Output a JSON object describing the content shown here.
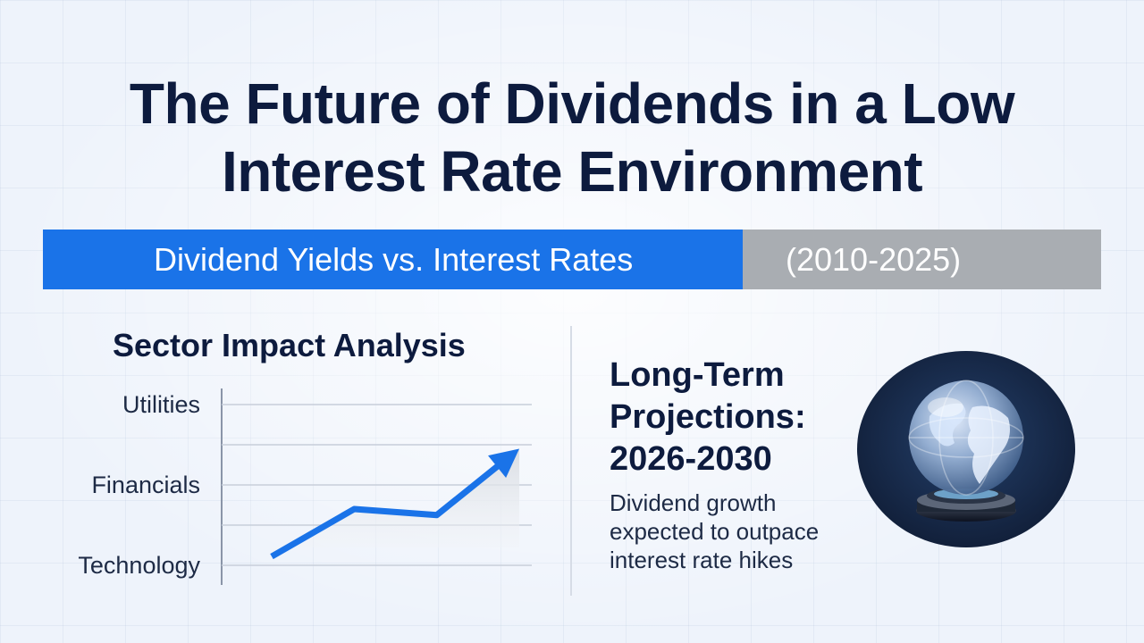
{
  "title": "The Future of Dividends in a Low Interest Rate Environment",
  "banner": {
    "label": "Dividend Yields vs. Interest Rates",
    "period": "(2010-2025)"
  },
  "sector": {
    "title": "Sector Impact Analysis"
  },
  "projections": {
    "title": "Long-Term Projections: 2026-2030",
    "text": "Dividend growth expected to outpace interest rate hikes"
  },
  "colors": {
    "accent": "#1a73e8",
    "banner_gray": "#a9adb2",
    "title": "#0d1b3e",
    "globe_bg": "#172a4a"
  },
  "chart_data": {
    "type": "line",
    "title": "Sector Impact Analysis",
    "y_categories": [
      "Technology",
      "",
      "Financials",
      "",
      "Utilities"
    ],
    "series": [
      {
        "points": [
          [
            0,
            0.22
          ],
          [
            1,
            1.4
          ],
          [
            2,
            1.25
          ],
          [
            3,
            2.9
          ]
        ]
      }
    ],
    "arrow_end": true,
    "area_fill": true,
    "grid": true
  }
}
